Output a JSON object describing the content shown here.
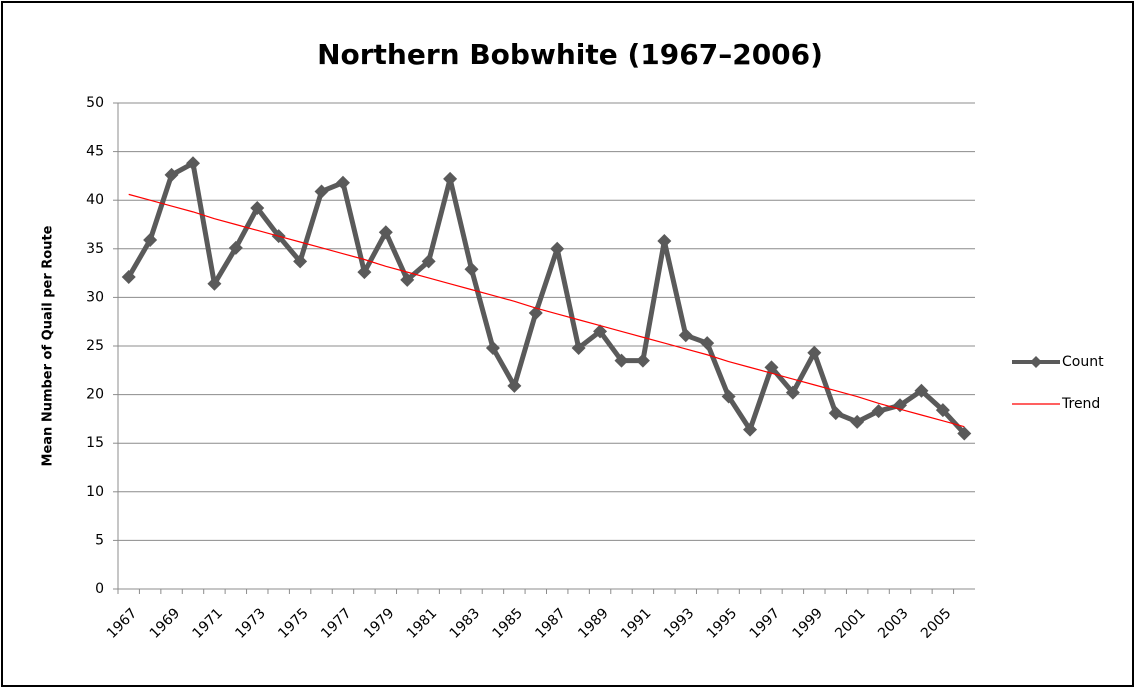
{
  "chart_data": {
    "type": "line",
    "title": "Northern Bobwhite (1967–2006)",
    "y_label": "Mean Number of Quail per Route",
    "categories": [
      "1967",
      null,
      "1969",
      null,
      "1971",
      null,
      "1973",
      null,
      "1975",
      null,
      "1977",
      null,
      "1979",
      null,
      "1981",
      null,
      "1983",
      null,
      "1985",
      null,
      "1987",
      null,
      "1989",
      null,
      "1991",
      null,
      "1993",
      null,
      "1995",
      null,
      "1997",
      null,
      "1999",
      null,
      "2001",
      null,
      "2003",
      null,
      "2005",
      null
    ],
    "series": [
      {
        "name": "Count",
        "color": "#5a5a5a",
        "marker": "diamond",
        "values": [
          32.1,
          35.9,
          42.6,
          43.8,
          31.4,
          35.1,
          39.2,
          36.3,
          33.7,
          40.9,
          41.8,
          32.6,
          36.7,
          31.8,
          33.7,
          42.2,
          32.9,
          24.8,
          20.9,
          28.4,
          35.0,
          24.8,
          26.5,
          23.5,
          23.5,
          35.8,
          26.1,
          25.3,
          19.8,
          16.4,
          22.8,
          20.2,
          24.3,
          18.1,
          17.2,
          18.3,
          18.9,
          20.4,
          18.4,
          16.0
        ]
      },
      {
        "name": "Trend",
        "color": "#ff0000",
        "values": [
          40.6,
          40.0,
          39.4,
          38.8,
          38.1,
          37.5,
          36.9,
          36.3,
          35.7,
          35.1,
          34.5,
          33.9,
          33.2,
          32.6,
          32.0,
          31.4,
          30.8,
          30.2,
          29.6,
          28.9,
          28.3,
          27.7,
          27.1,
          26.5,
          25.9,
          25.3,
          24.7,
          24.1,
          23.4,
          22.8,
          22.2,
          21.6,
          21.0,
          20.4,
          19.8,
          19.1,
          18.5,
          17.9,
          17.3,
          16.7
        ]
      }
    ],
    "ylim": [
      0,
      50
    ],
    "yticks": [
      0,
      5,
      10,
      15,
      20,
      25,
      30,
      35,
      40,
      45,
      50
    ],
    "grid": true,
    "legend": "right"
  }
}
